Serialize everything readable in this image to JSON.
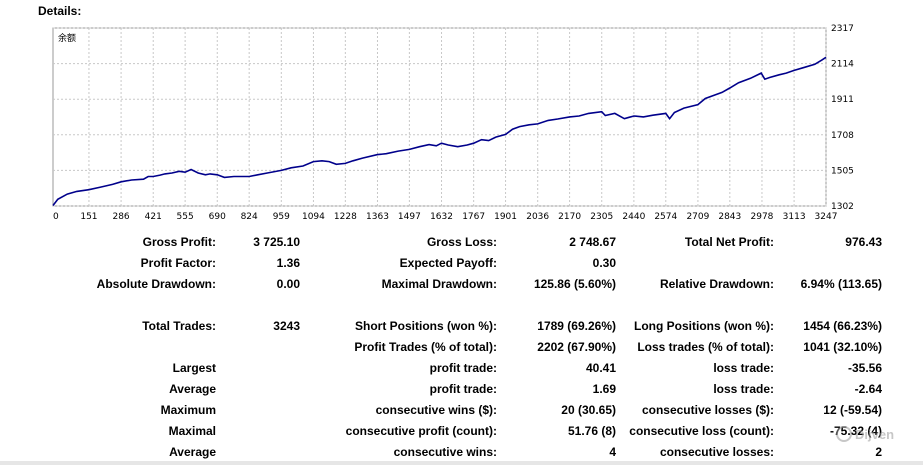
{
  "section_title": "Details:",
  "chart_data": {
    "type": "line",
    "title": "",
    "series_label": "余额",
    "x_ticks": [
      "0",
      "151",
      "286",
      "421",
      "555",
      "690",
      "824",
      "959",
      "1094",
      "1228",
      "1363",
      "1497",
      "1632",
      "1767",
      "1901",
      "2036",
      "2170",
      "2305",
      "2440",
      "2574",
      "2709",
      "2843",
      "2978",
      "3113",
      "3247"
    ],
    "y_ticks": [
      "2317",
      "2114",
      "1911",
      "1708",
      "1505",
      "1302"
    ],
    "xlim": [
      0,
      3247
    ],
    "ylim": [
      1302,
      2317
    ],
    "grid": true,
    "line_color": "#00008B",
    "points": [
      [
        0,
        1305
      ],
      [
        20,
        1340
      ],
      [
        60,
        1370
      ],
      [
        100,
        1385
      ],
      [
        151,
        1395
      ],
      [
        200,
        1410
      ],
      [
        250,
        1425
      ],
      [
        286,
        1440
      ],
      [
        330,
        1450
      ],
      [
        380,
        1455
      ],
      [
        400,
        1470
      ],
      [
        421,
        1470
      ],
      [
        450,
        1478
      ],
      [
        470,
        1485
      ],
      [
        500,
        1490
      ],
      [
        530,
        1500
      ],
      [
        555,
        1495
      ],
      [
        580,
        1510
      ],
      [
        610,
        1490
      ],
      [
        640,
        1480
      ],
      [
        660,
        1485
      ],
      [
        690,
        1480
      ],
      [
        720,
        1465
      ],
      [
        760,
        1470
      ],
      [
        800,
        1470
      ],
      [
        824,
        1470
      ],
      [
        860,
        1480
      ],
      [
        900,
        1490
      ],
      [
        959,
        1505
      ],
      [
        1000,
        1520
      ],
      [
        1050,
        1530
      ],
      [
        1094,
        1555
      ],
      [
        1130,
        1560
      ],
      [
        1160,
        1555
      ],
      [
        1190,
        1540
      ],
      [
        1228,
        1545
      ],
      [
        1260,
        1560
      ],
      [
        1300,
        1575
      ],
      [
        1363,
        1595
      ],
      [
        1400,
        1600
      ],
      [
        1450,
        1615
      ],
      [
        1497,
        1625
      ],
      [
        1540,
        1640
      ],
      [
        1580,
        1652
      ],
      [
        1610,
        1645
      ],
      [
        1632,
        1660
      ],
      [
        1660,
        1650
      ],
      [
        1700,
        1640
      ],
      [
        1740,
        1650
      ],
      [
        1767,
        1660
      ],
      [
        1800,
        1680
      ],
      [
        1830,
        1675
      ],
      [
        1860,
        1695
      ],
      [
        1901,
        1710
      ],
      [
        1930,
        1740
      ],
      [
        1960,
        1755
      ],
      [
        2000,
        1765
      ],
      [
        2036,
        1770
      ],
      [
        2080,
        1790
      ],
      [
        2120,
        1798
      ],
      [
        2170,
        1810
      ],
      [
        2210,
        1815
      ],
      [
        2250,
        1830
      ],
      [
        2305,
        1840
      ],
      [
        2320,
        1818
      ],
      [
        2360,
        1830
      ],
      [
        2400,
        1800
      ],
      [
        2420,
        1808
      ],
      [
        2440,
        1815
      ],
      [
        2480,
        1810
      ],
      [
        2520,
        1820
      ],
      [
        2574,
        1830
      ],
      [
        2590,
        1800
      ],
      [
        2610,
        1835
      ],
      [
        2650,
        1860
      ],
      [
        2709,
        1880
      ],
      [
        2740,
        1915
      ],
      [
        2780,
        1935
      ],
      [
        2810,
        1950
      ],
      [
        2843,
        1975
      ],
      [
        2880,
        2005
      ],
      [
        2930,
        2030
      ],
      [
        2975,
        2060
      ],
      [
        2990,
        2025
      ],
      [
        3010,
        2035
      ],
      [
        3050,
        2050
      ],
      [
        3080,
        2060
      ],
      [
        3113,
        2075
      ],
      [
        3150,
        2090
      ],
      [
        3200,
        2110
      ],
      [
        3230,
        2135
      ],
      [
        3247,
        2150
      ]
    ]
  },
  "stats": {
    "gross_profit_label": "Gross Profit:",
    "gross_profit_value": "3 725.10",
    "gross_loss_label": "Gross Loss:",
    "gross_loss_value": "2 748.67",
    "total_net_profit_label": "Total Net Profit:",
    "total_net_profit_value": "976.43",
    "profit_factor_label": "Profit Factor:",
    "profit_factor_value": "1.36",
    "expected_payoff_label": "Expected Payoff:",
    "expected_payoff_value": "0.30",
    "absolute_drawdown_label": "Absolute Drawdown:",
    "absolute_drawdown_value": "0.00",
    "maximal_drawdown_label": "Maximal Drawdown:",
    "maximal_drawdown_value": "125.86 (5.60%)",
    "relative_drawdown_label": "Relative Drawdown:",
    "relative_drawdown_value": "6.94% (113.65)",
    "total_trades_label": "Total Trades:",
    "total_trades_value": "3243",
    "short_positions_label": "Short Positions (won %):",
    "short_positions_value": "1789 (69.26%)",
    "long_positions_label": "Long Positions (won %):",
    "long_positions_value": "1454 (66.23%)",
    "profit_trades_label": "Profit Trades (% of total):",
    "profit_trades_value": "2202 (67.90%)",
    "loss_trades_label": "Loss trades (% of total):",
    "loss_trades_value": "1041 (32.10%)",
    "largest_label": "Largest",
    "largest_profit_label": "profit trade:",
    "largest_profit_value": "40.41",
    "largest_loss_label": "loss trade:",
    "largest_loss_value": "-35.56",
    "average_label": "Average",
    "average_profit_label": "profit trade:",
    "average_profit_value": "1.69",
    "average_loss_label": "loss trade:",
    "average_loss_value": "-2.64",
    "maximum_label": "Maximum",
    "max_consec_wins_label": "consecutive wins ($):",
    "max_consec_wins_value": "20 (30.65)",
    "max_consec_losses_label": "consecutive losses ($):",
    "max_consec_losses_value": "12 (-59.54)",
    "maximal_label": "Maximal",
    "maximal_consec_profit_label": "consecutive profit (count):",
    "maximal_consec_profit_value": "51.76 (8)",
    "maximal_consec_loss_label": "consecutive loss (count):",
    "maximal_consec_loss_value": "-75.32 (4)",
    "average2_label": "Average",
    "avg_consec_wins_label": "consecutive wins:",
    "avg_consec_wins_value": "4",
    "avg_consec_losses_label": "consecutive losses:",
    "avg_consec_losses_value": "2"
  },
  "watermark": {
    "text": "Dijven"
  }
}
